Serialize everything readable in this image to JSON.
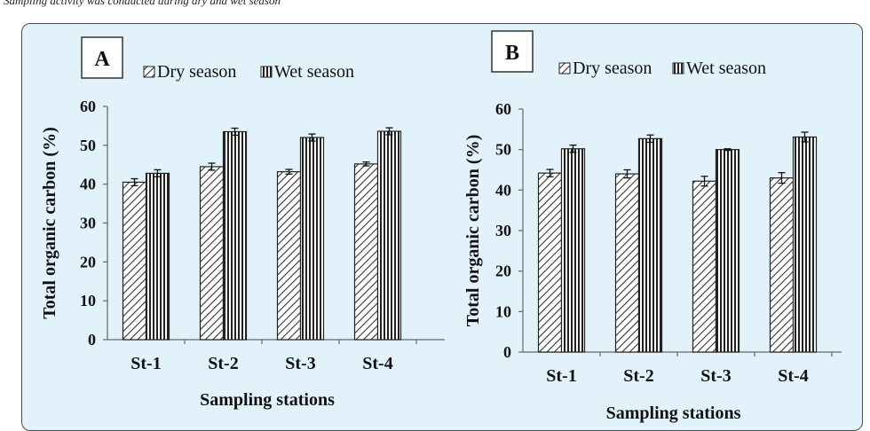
{
  "header_snippet": "Sampling activity was conducted during dry and wet season",
  "colors": {
    "background": "#e1f2fa",
    "frame_border": "#4a4a4a",
    "bar_stroke": "#222222"
  },
  "chart_data": [
    {
      "type": "bar",
      "panel_label": "A",
      "title": "",
      "xlabel": "Sampling stations",
      "ylabel": "Total organic carbon (%)",
      "categories": [
        "St-1",
        "St-2",
        "St-3",
        "St-4"
      ],
      "ylim": [
        0,
        60
      ],
      "yticks": [
        0,
        10,
        20,
        30,
        40,
        50,
        60
      ],
      "grid": false,
      "legend_position": "top",
      "series": [
        {
          "name": "Dry season",
          "pattern": "diagonal-hatch",
          "values": [
            40.5,
            44.5,
            43.2,
            45.2
          ],
          "errors": [
            0.9,
            0.9,
            0.6,
            0.5
          ]
        },
        {
          "name": "Wet season",
          "pattern": "vertical-lines",
          "values": [
            42.8,
            53.5,
            52.0,
            53.6
          ],
          "errors": [
            0.9,
            0.9,
            0.9,
            0.9
          ]
        }
      ]
    },
    {
      "type": "bar",
      "panel_label": "B",
      "title": "",
      "xlabel": "Sampling stations",
      "ylabel": "Total organic carbon (%)",
      "categories": [
        "St-1",
        "St-2",
        "St-3",
        "St-4"
      ],
      "ylim": [
        0,
        60
      ],
      "yticks": [
        0,
        10,
        20,
        30,
        40,
        50,
        60
      ],
      "grid": false,
      "legend_position": "top",
      "series": [
        {
          "name": "Dry season",
          "pattern": "diagonal-hatch",
          "values": [
            44.2,
            44.0,
            42.2,
            43.0
          ],
          "errors": [
            0.9,
            1.0,
            1.2,
            1.3
          ]
        },
        {
          "name": "Wet season",
          "pattern": "vertical-lines",
          "values": [
            50.2,
            52.7,
            50.0,
            53.1
          ],
          "errors": [
            0.9,
            0.9,
            0.2,
            1.2
          ]
        }
      ]
    }
  ]
}
